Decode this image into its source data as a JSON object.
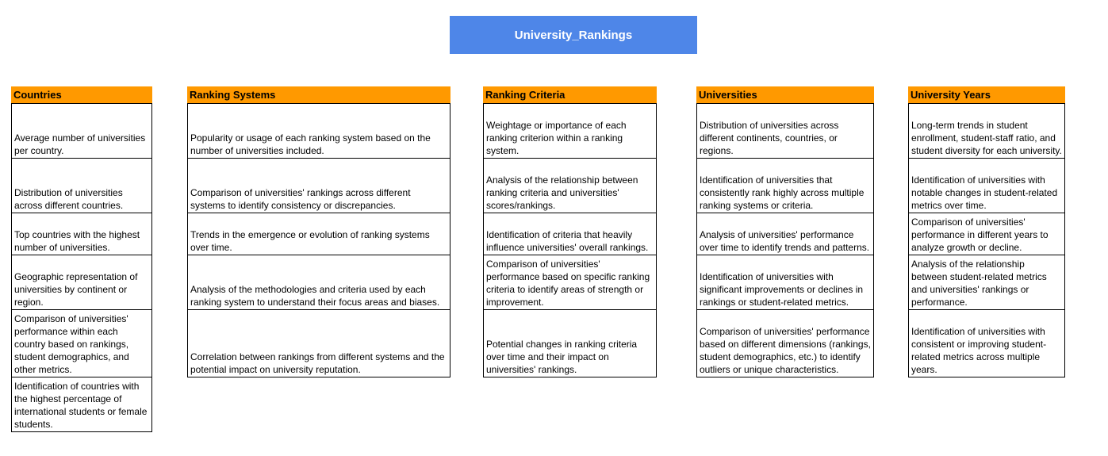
{
  "title": "University_Rankings",
  "colors": {
    "title_bg": "#4e86e8",
    "header_bg": "#ff9900"
  },
  "tables": [
    {
      "header": "Countries",
      "rows": [
        "Average number of universities per country.",
        "Distribution of universities across different countries.",
        "Top countries with the highest number of universities.",
        "Geographic representation of universities by continent or region.",
        "Comparison of universities' performance within each country based on rankings, student demographics, and other metrics.",
        "Identification of countries with the highest percentage of international students or female students."
      ]
    },
    {
      "header": "Ranking Systems",
      "rows": [
        "Popularity or usage of each ranking system based on the number of universities included.",
        "Comparison of universities' rankings across different systems to identify consistency or discrepancies.",
        "Trends in the emergence or evolution of ranking systems over time.",
        "Analysis of the methodologies and criteria used by each ranking system to understand their focus areas and biases.",
        "Correlation between rankings from different systems and the potential impact on university reputation."
      ]
    },
    {
      "header": "Ranking Criteria",
      "rows": [
        "Weightage or importance of each ranking criterion within a ranking system.",
        "Analysis of the relationship between ranking criteria and universities' scores/rankings.",
        "Identification of criteria that heavily influence universities' overall rankings.",
        "Comparison of universities' performance based on specific ranking criteria to identify areas of strength or improvement.",
        "Potential changes in ranking criteria over time and their impact on universities' rankings."
      ]
    },
    {
      "header": "Universities",
      "rows": [
        "Distribution of universities across different continents, countries, or regions.",
        "Identification of universities that consistently rank highly across multiple ranking systems or criteria.",
        "Analysis of universities' performance over time to identify trends and patterns.",
        "Identification of universities with significant improvements or declines in rankings or student-related metrics.",
        "Comparison of universities' performance based on different dimensions (rankings, student demographics, etc.) to identify outliers or unique characteristics."
      ]
    },
    {
      "header": "University Years",
      "rows": [
        "Long-term trends in student enrollment, student-staff ratio, and student diversity for each university.",
        "Identification of universities with notable changes in student-related metrics over time.",
        "Comparison of universities' performance in different years to analyze growth or decline.",
        "Analysis of the relationship between student-related metrics and universities' rankings or performance.",
        "Identification of universities with consistent or improving student-related metrics across multiple years."
      ]
    }
  ]
}
